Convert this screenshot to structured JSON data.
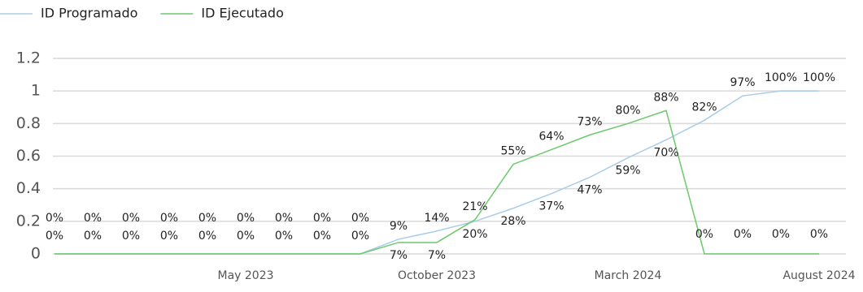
{
  "chart_data": {
    "type": "line",
    "categories": [
      null,
      null,
      null,
      null,
      null,
      "May 2023",
      null,
      null,
      null,
      null,
      "October 2023",
      null,
      null,
      null,
      null,
      "March 2024",
      null,
      null,
      null,
      null,
      "August 2024"
    ],
    "series": [
      {
        "name": "ID Programado",
        "color": "#a9cde8",
        "values": [
          0,
          0,
          0,
          0,
          0,
          0,
          0,
          0,
          0,
          0.09,
          0.14,
          0.2,
          0.28,
          0.37,
          0.47,
          0.59,
          0.7,
          0.82,
          0.97,
          1,
          1
        ],
        "value_labels": [
          "0%",
          "0%",
          "0%",
          "0%",
          "0%",
          "0%",
          "0%",
          "0%",
          "0%",
          "9%",
          "14%",
          "20%",
          "28%",
          "37%",
          "47%",
          "59%",
          "70%",
          "82%",
          "97%",
          "100%",
          "100%"
        ]
      },
      {
        "name": "ID Ejecutado",
        "color": "#6cc96c",
        "values": [
          0,
          0,
          0,
          0,
          0,
          0,
          0,
          0,
          0,
          0.07,
          0.07,
          0.21,
          0.55,
          0.64,
          0.73,
          0.8,
          0.88,
          0,
          0,
          0,
          0
        ],
        "value_labels": [
          "0%",
          "0%",
          "0%",
          "0%",
          "0%",
          "0%",
          "0%",
          "0%",
          "0%",
          "7%",
          "7%",
          "21%",
          "55%",
          "64%",
          "73%",
          "80%",
          "88%",
          "0%",
          "0%",
          "0%",
          "0%"
        ]
      }
    ],
    "ylim": [
      0,
      1.2
    ],
    "yticks": [
      0,
      0.2,
      0.4,
      0.6,
      0.8,
      1,
      1.2
    ],
    "grid": true,
    "legend": "top-left"
  }
}
